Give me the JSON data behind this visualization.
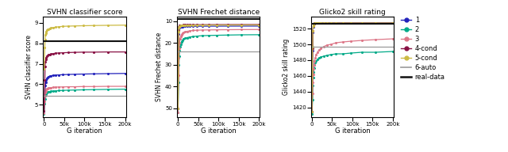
{
  "titles": [
    "SVHN classifier score",
    "SVHN Frechet distance",
    "Glicko2 skill rating"
  ],
  "xlabel": "G iteration",
  "ylabels": [
    "SVHN classifier score",
    "SVHN Frechet distance",
    "Glicko2 skill rating"
  ],
  "colors": {
    "1": "#2222bb",
    "2": "#00aa88",
    "3": "#dd7788",
    "4-cond": "#881144",
    "5-cond": "#ccbb44",
    "6-auto": "#999999",
    "real-data": "#111111"
  },
  "x_ticks": [
    0,
    50000,
    100000,
    150000,
    200000
  ],
  "x_tick_labels": [
    "0",
    "50k",
    "100k",
    "150k",
    "200k"
  ],
  "plot1": {
    "ylim": [
      4.4,
      9.3
    ],
    "yticks": [
      5,
      6,
      7,
      8,
      9
    ],
    "real_data_y": 8.1,
    "auto6_y": 5.45,
    "series": {
      "1": [
        4.65,
        5.3,
        5.7,
        5.95,
        6.1,
        6.2,
        6.28,
        6.33,
        6.37,
        6.4,
        6.42,
        6.44,
        6.45,
        6.46,
        6.47,
        6.48,
        6.49,
        6.5,
        6.51,
        6.52,
        6.53
      ],
      "2": [
        4.55,
        5.05,
        5.3,
        5.45,
        5.52,
        5.57,
        5.6,
        5.62,
        5.64,
        5.65,
        5.66,
        5.67,
        5.68,
        5.69,
        5.7,
        5.71,
        5.72,
        5.73,
        5.74,
        5.75,
        5.76
      ],
      "3": [
        4.6,
        5.15,
        5.45,
        5.6,
        5.68,
        5.73,
        5.77,
        5.8,
        5.82,
        5.83,
        5.84,
        5.85,
        5.86,
        5.87,
        5.87,
        5.88,
        5.88,
        5.89,
        5.89,
        5.9,
        5.9
      ],
      "4-cond": [
        4.7,
        6.2,
        6.85,
        7.1,
        7.22,
        7.3,
        7.36,
        7.4,
        7.44,
        7.46,
        7.48,
        7.5,
        7.52,
        7.53,
        7.54,
        7.55,
        7.56,
        7.57,
        7.57,
        7.58,
        7.58
      ],
      "5-cond": [
        6.75,
        7.8,
        8.2,
        8.4,
        8.5,
        8.58,
        8.63,
        8.67,
        8.7,
        8.73,
        8.75,
        8.77,
        8.79,
        8.81,
        8.83,
        8.84,
        8.85,
        8.86,
        8.87,
        8.88,
        8.89
      ]
    }
  },
  "plot2": {
    "ylim": [
      8,
      54
    ],
    "yticks": [
      10,
      20,
      30,
      40,
      50
    ],
    "invert_y": true,
    "real_data_y": 9.0,
    "auto6_y": 24.0,
    "series": {
      "1": [
        50,
        16,
        13.5,
        13.0,
        12.8,
        12.7,
        12.6,
        12.55,
        12.5,
        12.47,
        12.44,
        12.42,
        12.4,
        12.38,
        12.36,
        12.35,
        12.33,
        12.32,
        12.3,
        12.29,
        12.28
      ],
      "2": [
        52,
        38,
        30,
        26,
        23.5,
        21.8,
        20.5,
        19.5,
        18.8,
        18.3,
        17.9,
        17.6,
        17.3,
        17.1,
        16.9,
        16.7,
        16.6,
        16.5,
        16.4,
        16.3,
        16.25
      ],
      "3": [
        52,
        35,
        27,
        22.5,
        19.8,
        18.0,
        17.0,
        16.2,
        15.6,
        15.2,
        14.9,
        14.7,
        14.5,
        14.3,
        14.2,
        14.1,
        14.05,
        14.0,
        13.95,
        13.9,
        13.87
      ],
      "4-cond": [
        50,
        14,
        12.5,
        12.2,
        12.0,
        11.9,
        11.85,
        11.8,
        11.78,
        11.75,
        11.73,
        11.71,
        11.7,
        11.68,
        11.67,
        11.65,
        11.64,
        11.62,
        11.61,
        11.6,
        11.59
      ],
      "5-cond": [
        50,
        15,
        13.0,
        12.5,
        12.3,
        12.2,
        12.1,
        12.05,
        12.0,
        11.97,
        11.95,
        11.92,
        11.9,
        11.88,
        11.87,
        11.85,
        11.84,
        11.83,
        11.82,
        11.81,
        11.8
      ]
    }
  },
  "plot3": {
    "ylim": [
      1408,
      1535
    ],
    "yticks": [
      1420,
      1440,
      1460,
      1480,
      1500,
      1520
    ],
    "real_data_y": 1526,
    "auto6_y": 1497,
    "series": {
      "1": [
        1415,
        1492,
        1515,
        1522,
        1525,
        1526,
        1527,
        1527,
        1527,
        1527,
        1527,
        1527,
        1527,
        1527,
        1527,
        1527,
        1527,
        1527,
        1527,
        1527,
        1527
      ],
      "2": [
        1412,
        1430,
        1448,
        1458,
        1465,
        1470,
        1474,
        1477,
        1479,
        1481,
        1483,
        1484,
        1485,
        1486,
        1487,
        1488,
        1488,
        1489,
        1490,
        1490,
        1491
      ],
      "3": [
        1415,
        1438,
        1452,
        1462,
        1469,
        1474,
        1479,
        1483,
        1487,
        1490,
        1493,
        1495,
        1497,
        1499,
        1500,
        1502,
        1503,
        1504,
        1505,
        1506,
        1507
      ],
      "4-cond": [
        1415,
        1495,
        1517,
        1523,
        1525,
        1526,
        1527,
        1527,
        1527,
        1527,
        1527,
        1527,
        1527,
        1527,
        1527,
        1527,
        1527,
        1527,
        1527,
        1527,
        1527
      ],
      "5-cond": [
        1415,
        1497,
        1517,
        1523,
        1525,
        1526,
        1527,
        1527,
        1527,
        1527,
        1527,
        1527,
        1527,
        1527,
        1527,
        1527,
        1527,
        1527,
        1527,
        1527,
        1527
      ]
    }
  },
  "legend_labels": [
    "1",
    "2",
    "3",
    "4-cond",
    "5-cond",
    "6-auto",
    "real-data"
  ],
  "n_points": 21
}
